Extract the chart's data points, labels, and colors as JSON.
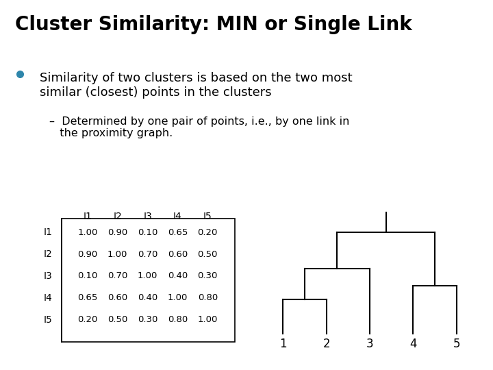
{
  "title": "Cluster Similarity: MIN or Single Link",
  "bullet_text": "Similarity of two clusters is based on the two most\nsimilar (closest) points in the clusters",
  "sub_bullet": "–  Determined by one pair of points, i.e., by one link in\n   the proximity graph.",
  "bullet_color": "#2E86AB",
  "bg_color": "#ffffff",
  "title_color": "#000000",
  "text_color": "#000000",
  "matrix_labels": [
    "I1",
    "I2",
    "I3",
    "I4",
    "I5"
  ],
  "matrix_data": [
    [
      1.0,
      0.9,
      0.1,
      0.65,
      0.2
    ],
    [
      0.9,
      1.0,
      0.7,
      0.6,
      0.5
    ],
    [
      0.1,
      0.7,
      1.0,
      0.4,
      0.3
    ],
    [
      0.65,
      0.6,
      0.4,
      1.0,
      0.8
    ],
    [
      0.2,
      0.5,
      0.3,
      0.8,
      1.0
    ]
  ],
  "title_fontsize": 20,
  "body_fontsize": 13,
  "sub_fontsize": 11.5
}
